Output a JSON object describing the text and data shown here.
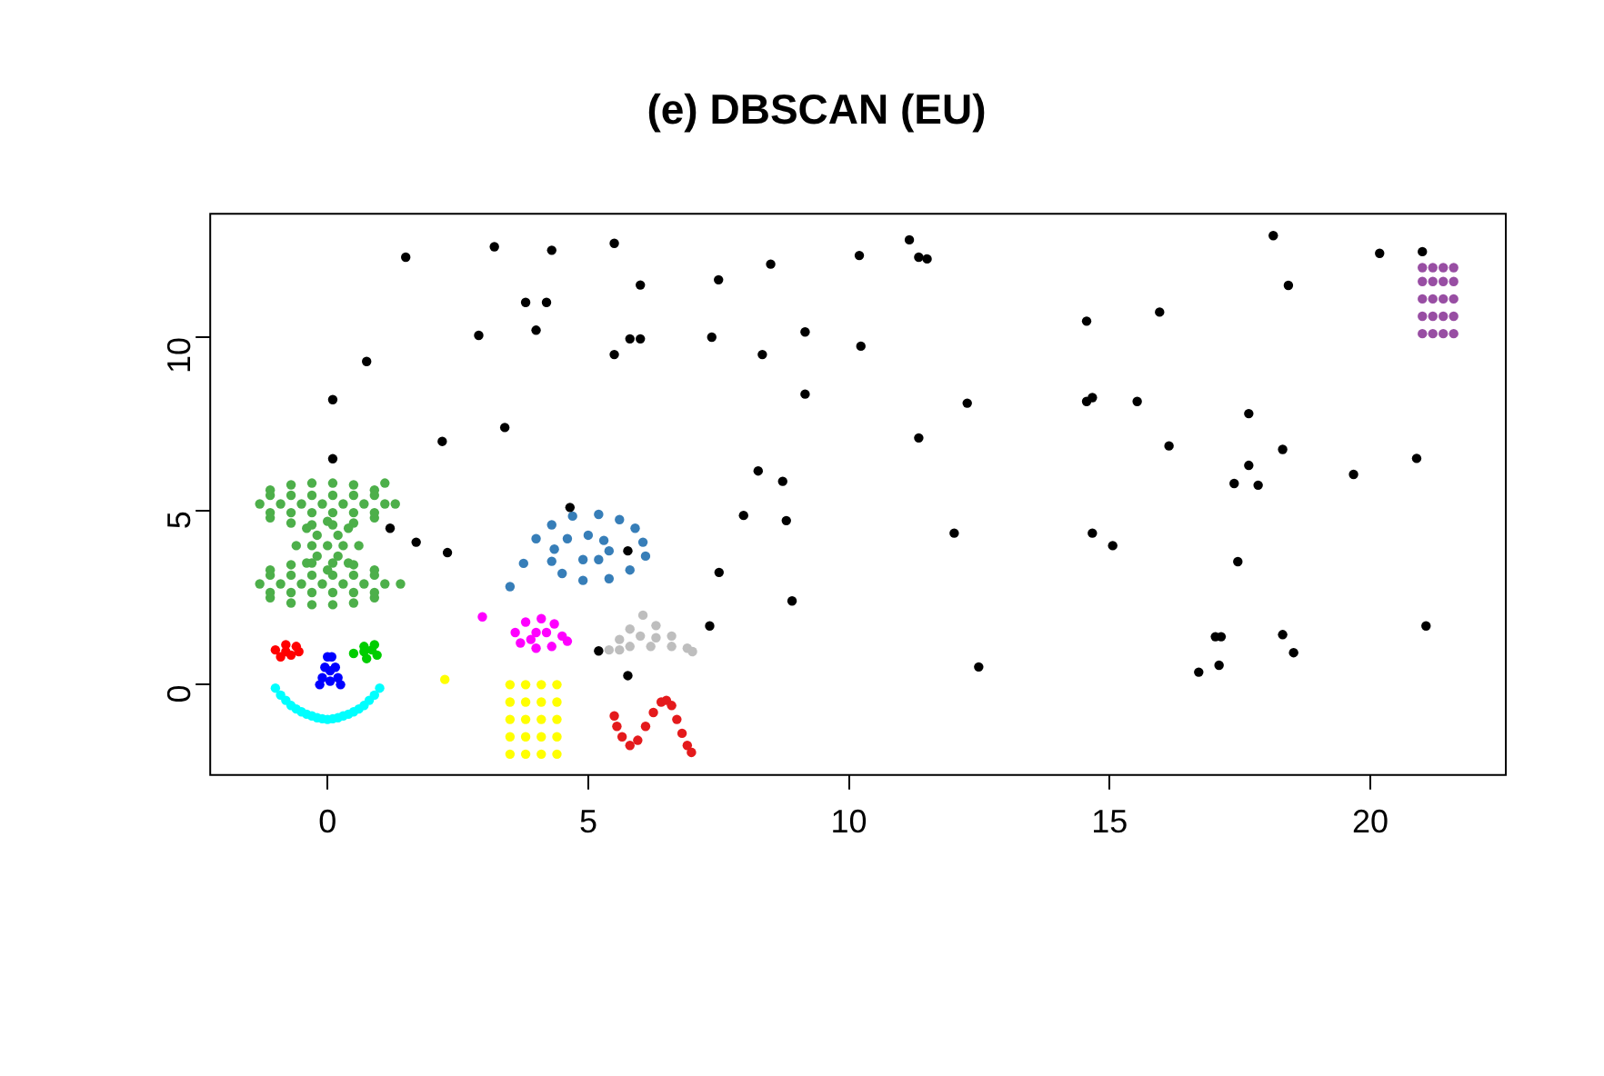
{
  "chart_data": {
    "type": "scatter",
    "title": "(e) DBSCAN (EU)",
    "xlim": [
      -2.25,
      22.6
    ],
    "ylim": [
      -2.6,
      13.55
    ],
    "xticks": [
      0,
      5,
      10,
      15,
      20
    ],
    "yticks": [
      0,
      5,
      10
    ],
    "grid": false,
    "legend": false,
    "marker": "circle",
    "series": [
      {
        "color": "#000000",
        "x": [
          0.1,
          0.1,
          0.75,
          1.5,
          2.2,
          1.2,
          1.7,
          2.3,
          2.9,
          3.2,
          3.4,
          3.8,
          4.0,
          4.2,
          4.3,
          4.65,
          5.5,
          6.0,
          5.5,
          5.8,
          6.0,
          5.76,
          5.2,
          5.76,
          7.5,
          8.5,
          10.2,
          11.16,
          11.34,
          11.5,
          7.37,
          9.16,
          8.34,
          10.23,
          9.16,
          12.27,
          11.34,
          8.26,
          8.73,
          7.98,
          8.8,
          12.02,
          7.51,
          8.91,
          7.33,
          12.49,
          18.14,
          20.18,
          21.0,
          18.43,
          14.56,
          15.96,
          14.56,
          14.67,
          15.53,
          17.67,
          16.14,
          18.32,
          17.67,
          17.39,
          17.85,
          19.68,
          20.89,
          14.67,
          15.06,
          17.46,
          21.07,
          17.03,
          17.14,
          18.32,
          18.53,
          17.1,
          16.71
        ],
        "values": [
          6.5,
          8.2,
          9.3,
          12.3,
          7.0,
          4.5,
          4.1,
          3.8,
          10.05,
          12.6,
          7.4,
          11.0,
          10.2,
          11.0,
          12.5,
          5.1,
          12.7,
          11.5,
          9.5,
          9.95,
          9.95,
          3.85,
          0.97,
          0.26,
          11.65,
          12.1,
          12.35,
          12.8,
          12.3,
          12.25,
          10.0,
          10.15,
          9.5,
          9.74,
          8.36,
          8.1,
          7.1,
          6.15,
          5.85,
          4.87,
          4.72,
          4.36,
          3.23,
          2.41,
          1.69,
          0.51,
          12.92,
          12.41,
          12.46,
          11.49,
          10.46,
          10.72,
          8.15,
          8.26,
          8.15,
          7.8,
          6.87,
          6.77,
          6.31,
          5.79,
          5.74,
          6.05,
          6.51,
          4.36,
          4.0,
          3.54,
          1.69,
          1.38,
          1.38,
          1.44,
          0.92,
          0.56,
          0.36
        ]
      },
      {
        "color": "#4daf4a",
        "x": [
          -1.3,
          -1.1,
          -1.1,
          -0.7,
          -0.7,
          -0.3,
          -0.3,
          0.1,
          0.1,
          0.5,
          0.5,
          0.9,
          0.9,
          1.3,
          -0.9,
          -0.5,
          -0.1,
          0.3,
          0.7,
          1.1,
          -0.7,
          -0.3,
          0.1,
          0.5,
          -0.7,
          -0.3,
          0.1,
          0.5,
          0.9,
          0.9,
          -1.1,
          -1.1,
          1.1,
          -0.6,
          0.6,
          0,
          0,
          -0.4,
          0.4,
          -0.4,
          0.4,
          -0.3,
          0,
          0.3,
          -0.2,
          0.2,
          -0.2,
          0.2,
          -1.3,
          -1.1,
          -1.1,
          -0.7,
          -0.7,
          -0.3,
          -0.3,
          0.1,
          0.1,
          0.5,
          0.5,
          0.9,
          0.9,
          1.4,
          -0.9,
          -0.5,
          -0.1,
          0.3,
          0.7,
          1.1,
          -0.7,
          -0.3,
          0.1,
          0.5,
          -0.7,
          -0.3,
          0.1,
          0.5,
          0.9,
          0.9,
          -1.1,
          -1.1
        ],
        "values": [
          5.2,
          5.6,
          4.8,
          5.75,
          4.65,
          5.8,
          4.6,
          5.8,
          4.6,
          5.75,
          4.65,
          5.6,
          4.8,
          5.2,
          5.2,
          5.2,
          5.2,
          5.2,
          5.2,
          5.2,
          5.45,
          5.45,
          5.45,
          5.45,
          4.95,
          4.95,
          4.95,
          4.95,
          5.45,
          4.95,
          5.45,
          4.95,
          5.8,
          4.0,
          4.0,
          4.7,
          3.3,
          4.5,
          4.5,
          3.5,
          3.5,
          4.0,
          4.0,
          4.0,
          4.3,
          4.3,
          3.7,
          3.7,
          2.9,
          3.3,
          2.5,
          3.45,
          2.35,
          3.5,
          2.3,
          3.5,
          2.3,
          3.45,
          2.35,
          3.3,
          2.5,
          2.9,
          2.9,
          2.9,
          2.9,
          2.9,
          2.9,
          2.9,
          3.15,
          3.15,
          3.15,
          3.15,
          2.65,
          2.65,
          2.65,
          2.65,
          3.15,
          2.65,
          3.15,
          2.65
        ]
      },
      {
        "color": "#ff0000",
        "x": [
          -1.0,
          -0.8,
          -0.6,
          -0.9,
          -0.7,
          -0.55,
          -0.8
        ],
        "values": [
          1.0,
          1.15,
          1.1,
          0.8,
          0.85,
          0.95,
          0.95
        ]
      },
      {
        "color": "#00cd00",
        "x": [
          0.5,
          0.7,
          0.9,
          0.95,
          0.75,
          0.7,
          0.85
        ],
        "values": [
          0.9,
          1.1,
          1.15,
          0.85,
          0.75,
          0.95,
          1.0
        ]
      },
      {
        "color": "#0000ff",
        "x": [
          0,
          0.08,
          -0.05,
          0.15,
          -0.1,
          0.2,
          -0.15,
          0.25,
          0.05,
          0.05
        ],
        "values": [
          0.8,
          0.8,
          0.5,
          0.5,
          0.2,
          0.2,
          0,
          0,
          0.1,
          0.4
        ]
      },
      {
        "color": "#00ffff",
        "x": [
          -1.0,
          -0.9,
          -0.8,
          -0.7,
          -0.6,
          -0.5,
          -0.4,
          -0.3,
          -0.2,
          -0.1,
          0,
          0.1,
          0.2,
          0.3,
          0.4,
          0.5,
          0.6,
          0.7,
          0.8,
          0.9,
          1.0
        ],
        "values": [
          -0.1,
          -0.3,
          -0.45,
          -0.6,
          -0.7,
          -0.78,
          -0.85,
          -0.9,
          -0.95,
          -0.98,
          -1.0,
          -0.98,
          -0.95,
          -0.9,
          -0.85,
          -0.78,
          -0.7,
          -0.6,
          -0.45,
          -0.3,
          -0.1
        ]
      },
      {
        "color": "#ff00ff",
        "x": [
          3.6,
          3.8,
          4.1,
          4.35,
          4.5,
          4.3,
          4.0,
          3.7,
          4.0,
          3.9,
          4.2,
          4.6,
          2.97
        ],
        "values": [
          1.5,
          1.8,
          1.9,
          1.75,
          1.4,
          1.1,
          1.05,
          1.2,
          1.5,
          1.3,
          1.5,
          1.25,
          1.95
        ]
      },
      {
        "color": "#ffff00",
        "x": [
          3.5,
          3.8,
          4.1,
          4.4,
          3.5,
          3.8,
          4.1,
          4.4,
          3.5,
          3.8,
          4.1,
          4.4,
          3.5,
          3.8,
          4.1,
          4.4,
          3.5,
          3.8,
          4.1,
          4.4,
          2.25
        ],
        "values": [
          0,
          0,
          0,
          0,
          -0.5,
          -0.5,
          -0.5,
          -0.5,
          -1,
          -1,
          -1,
          -1,
          -1.5,
          -1.5,
          -1.5,
          -1.5,
          -2,
          -2,
          -2,
          -2,
          0.15
        ]
      },
      {
        "color": "#bebebe",
        "x": [
          5.4,
          5.6,
          5.8,
          6.05,
          6.3,
          6.6,
          6.9,
          5.8,
          6.2,
          6.6,
          6.0,
          6.3,
          5.6,
          7.0
        ],
        "values": [
          1.0,
          1.3,
          1.6,
          2.0,
          1.7,
          1.4,
          1.05,
          1.1,
          1.1,
          1.1,
          1.4,
          1.35,
          1.0,
          0.95
        ]
      },
      {
        "color": "#e41a1c",
        "x": [
          5.5,
          5.55,
          5.65,
          5.8,
          5.95,
          6.1,
          6.25,
          6.4,
          6.5,
          6.6,
          6.7,
          6.8,
          6.9,
          6.98
        ],
        "values": [
          -0.9,
          -1.2,
          -1.5,
          -1.75,
          -1.6,
          -1.2,
          -0.8,
          -0.5,
          -0.45,
          -0.6,
          -1.0,
          -1.4,
          -1.75,
          -1.95
        ]
      },
      {
        "color": "#377eb8",
        "x": [
          4.0,
          4.3,
          4.7,
          5.2,
          5.6,
          5.9,
          6.05,
          6.1,
          5.8,
          5.4,
          4.9,
          4.5,
          4.3,
          4.35,
          4.6,
          5.0,
          5.3,
          5.4,
          5.2,
          4.9,
          3.76,
          3.5
        ],
        "values": [
          4.2,
          4.6,
          4.85,
          4.9,
          4.75,
          4.5,
          4.1,
          3.7,
          3.3,
          3.05,
          3.0,
          3.2,
          3.55,
          3.9,
          4.2,
          4.3,
          4.15,
          3.85,
          3.6,
          3.6,
          3.49,
          2.82
        ]
      },
      {
        "color": "#984ea3",
        "x": [
          21.0,
          21.2,
          21.4,
          21.6,
          21.0,
          21.2,
          21.4,
          21.6,
          21.0,
          21.2,
          21.4,
          21.6,
          21.0,
          21.2,
          21.4,
          21.6,
          21.0,
          21.2,
          21.4,
          21.6
        ],
        "values": [
          10.1,
          10.1,
          10.1,
          10.1,
          10.6,
          10.6,
          10.6,
          10.6,
          11.1,
          11.1,
          11.1,
          11.1,
          11.6,
          11.6,
          11.6,
          11.6,
          12.0,
          12.0,
          12.0,
          12.0
        ]
      }
    ]
  }
}
